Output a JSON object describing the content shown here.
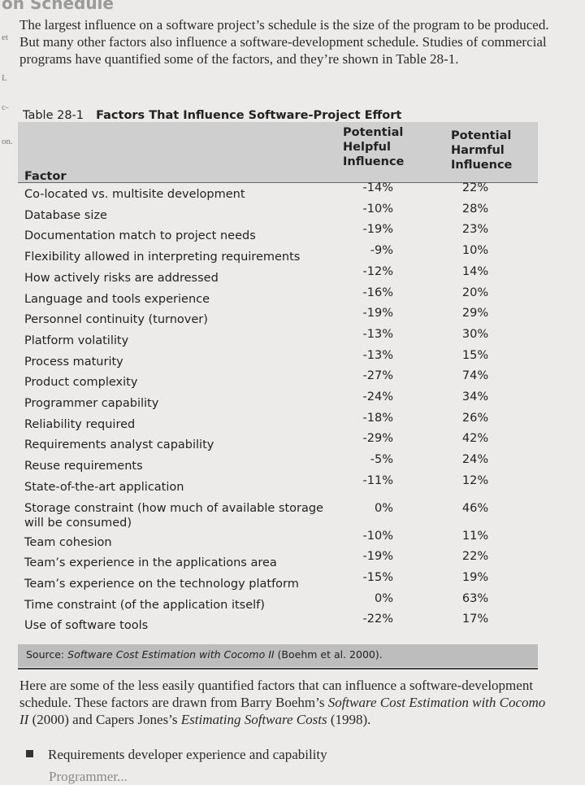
{
  "running_head": "on Schedule",
  "margin_notes": [
    "et",
    "L",
    "c-",
    "on."
  ],
  "intro_paragraph": "The largest influence on a software project’s schedule is the size of the program to be produced. But many other factors also influence a software-development schedule. Studies of commercial programs have quantified some of the factors, and they’re shown in Table 28-1.",
  "table": {
    "number": "Table 28-1",
    "title": "Factors That Influence Software-Project Effort",
    "headers": {
      "factor": "Factor",
      "helpful_1": "Potential",
      "helpful_2": "Helpful",
      "helpful_3": "Influence",
      "harmful_1": "Potential",
      "harmful_2": "Harmful",
      "harmful_3": "Influence"
    },
    "rows": [
      {
        "factor": "Co-located vs. multisite development",
        "helpful": "-14%",
        "harmful": "22%"
      },
      {
        "factor": "Database size",
        "helpful": "-10%",
        "harmful": "28%"
      },
      {
        "factor": "Documentation match to project needs",
        "helpful": "-19%",
        "harmful": "23%"
      },
      {
        "factor": "Flexibility allowed in interpreting requirements",
        "helpful": "-9%",
        "harmful": "10%"
      },
      {
        "factor": "How actively risks are addressed",
        "helpful": "-12%",
        "harmful": "14%"
      },
      {
        "factor": "Language and tools experience",
        "helpful": "-16%",
        "harmful": "20%"
      },
      {
        "factor": "Personnel continuity (turnover)",
        "helpful": "-19%",
        "harmful": "29%"
      },
      {
        "factor": "Platform volatility",
        "helpful": "-13%",
        "harmful": "30%"
      },
      {
        "factor": "Process maturity",
        "helpful": "-13%",
        "harmful": "15%"
      },
      {
        "factor": "Product complexity",
        "helpful": "-27%",
        "harmful": "74%"
      },
      {
        "factor": "Programmer capability",
        "helpful": "-24%",
        "harmful": "34%"
      },
      {
        "factor": "Reliability required",
        "helpful": "-18%",
        "harmful": "26%"
      },
      {
        "factor": "Requirements analyst capability",
        "helpful": "-29%",
        "harmful": "42%"
      },
      {
        "factor": "Reuse requirements",
        "helpful": "-5%",
        "harmful": "24%"
      },
      {
        "factor": "State-of-the-art application",
        "helpful": "-11%",
        "harmful": "12%"
      },
      {
        "factor": "Storage constraint (how much of available storage will be consumed)",
        "helpful": "0%",
        "harmful": "46%"
      },
      {
        "factor": "Team cohesion",
        "helpful": "-10%",
        "harmful": "11%"
      },
      {
        "factor": "Team’s experience in the applications area",
        "helpful": "-19%",
        "harmful": "22%"
      },
      {
        "factor": "Team’s experience on the technology platform",
        "helpful": "-15%",
        "harmful": "19%"
      },
      {
        "factor": "Time constraint (of the application itself)",
        "helpful": "0%",
        "harmful": "63%"
      },
      {
        "factor": "Use of software tools",
        "helpful": "-22%",
        "harmful": "17%"
      }
    ],
    "source_label": "Source:",
    "source_title": "Software Cost Estimation with Cocomo II",
    "source_rest": " (Boehm et al. 2000)."
  },
  "body_paragraph": {
    "a": "Here are some of the less easily quantified factors that can influence a software-development schedule. These factors are drawn from Barry Boehm’s ",
    "b": "Software Cost Estimation with Cocomo II",
    "c": " (2000) and Capers Jones’s ",
    "d": "Estimating Software Costs",
    "e": " (1998)."
  },
  "bullets": [
    "Requirements developer experience and capability",
    "Programmer..."
  ]
}
